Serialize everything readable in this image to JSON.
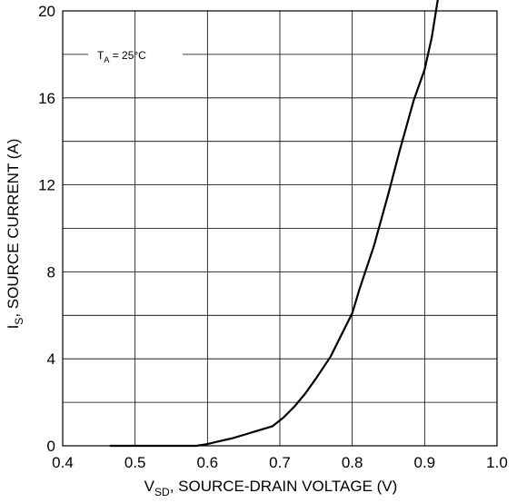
{
  "chart_data": {
    "type": "line",
    "x_axis": {
      "label_main": "V",
      "label_sub": "SD",
      "label_rest": ", SOURCE-DRAIN VOLTAGE (V)",
      "range": [
        0.4,
        1.0
      ],
      "ticks": [
        "0.4",
        "0.5",
        "0.6",
        "0.7",
        "0.8",
        "0.9",
        "1.0"
      ],
      "tick_values": [
        0.4,
        0.5,
        0.6,
        0.7,
        0.8,
        0.9,
        1.0
      ],
      "minor_grid_step": 0.1
    },
    "y_axis": {
      "label_main": "I",
      "label_sub": "S",
      "label_rest": ", SOURCE CURRENT (A)",
      "range": [
        0,
        20
      ],
      "ticks": [
        "0",
        "4",
        "8",
        "12",
        "16",
        "20"
      ],
      "tick_values": [
        0,
        4,
        8,
        12,
        16,
        20
      ],
      "minor_grid_step": 2
    },
    "grid": true,
    "annotation": {
      "main": "T",
      "sub": "A",
      "rest": " = 25°C",
      "anchor_x": 0.421,
      "anchor_y": 18.9
    },
    "series": [
      {
        "color": "#000000",
        "x": [
          0.465,
          0.52,
          0.56,
          0.585,
          0.6,
          0.615,
          0.635,
          0.65,
          0.67,
          0.69,
          0.705,
          0.72,
          0.735,
          0.75,
          0.77,
          0.785,
          0.8,
          0.81,
          0.83,
          0.85,
          0.865,
          0.885,
          0.9,
          0.91,
          0.92
        ],
        "y": [
          0,
          0,
          0,
          0,
          0.08,
          0.2,
          0.35,
          0.5,
          0.7,
          0.9,
          1.3,
          1.8,
          2.4,
          3.1,
          4.1,
          5.1,
          6.1,
          7.2,
          9.2,
          11.6,
          13.5,
          15.9,
          17.3,
          18.8,
          20.9
        ]
      }
    ]
  }
}
